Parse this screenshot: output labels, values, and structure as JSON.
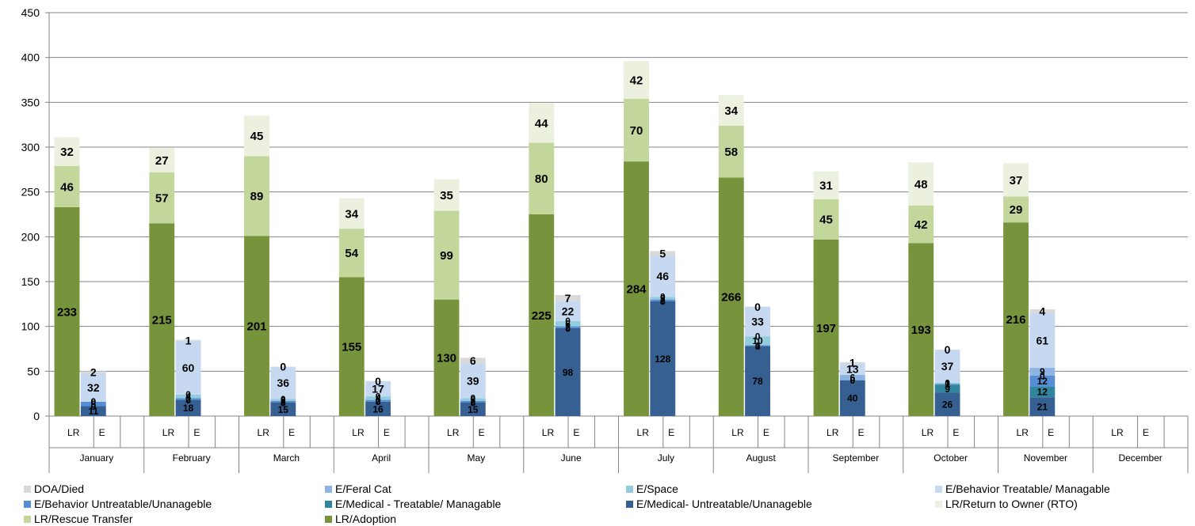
{
  "chart_data": {
    "type": "bar",
    "stacked": true,
    "ylim": [
      0,
      450
    ],
    "yticks": [
      0,
      50,
      100,
      150,
      200,
      250,
      300,
      350,
      400,
      450
    ],
    "grid": true,
    "legend_position": "bottom",
    "months": [
      "January",
      "February",
      "March",
      "April",
      "May",
      "June",
      "July",
      "August",
      "September",
      "October",
      "November",
      "December"
    ],
    "sub_categories": [
      "LR",
      "E"
    ],
    "series": [
      {
        "name": "LR/Adoption",
        "group": "LR",
        "color": "#77933c",
        "label_size": 15,
        "values": [
          233,
          215,
          201,
          155,
          130,
          225,
          284,
          266,
          197,
          193,
          216,
          null
        ]
      },
      {
        "name": "LR/Rescue Transfer",
        "group": "LR",
        "color": "#c3d69b",
        "label_size": 15,
        "values": [
          46,
          57,
          89,
          54,
          99,
          80,
          70,
          58,
          45,
          42,
          29,
          null
        ]
      },
      {
        "name": "LR/Return to Owner (RTO)",
        "group": "LR",
        "color": "#ebf1de",
        "label_size": 15,
        "values": [
          32,
          27,
          45,
          34,
          35,
          44,
          42,
          34,
          31,
          48,
          37,
          null
        ]
      },
      {
        "name": "E/Medical- Untreatable/Unanageble",
        "group": "E",
        "color": "#376092",
        "label_size": 12,
        "values": [
          11,
          18,
          15,
          16,
          15,
          98,
          128,
          78,
          40,
          26,
          21,
          null
        ]
      },
      {
        "name": "E/Medical - Treatable/ Managable",
        "group": "E",
        "color": "#31859c",
        "label_size": 12,
        "values": [
          0,
          0,
          0,
          0,
          0,
          0,
          0,
          0,
          0,
          9,
          12,
          null
        ]
      },
      {
        "name": "E/Behavior Untreatable/Unanageble",
        "group": "E",
        "color": "#558ed5",
        "label_size": 12,
        "values": [
          5,
          2,
          2,
          2,
          2,
          2,
          2,
          1,
          0,
          1,
          12,
          null
        ]
      },
      {
        "name": "E/Space",
        "group": "E",
        "color": "#93cddd",
        "label_size": 12,
        "values": [
          0,
          4,
          2,
          4,
          3,
          6,
          3,
          10,
          0,
          1,
          0,
          null
        ]
      },
      {
        "name": "E/Feral Cat",
        "group": "E",
        "color": "#8eb4e3",
        "label_size": 12,
        "values": [
          0,
          0,
          0,
          0,
          0,
          0,
          0,
          0,
          6,
          0,
          9,
          null
        ]
      },
      {
        "name": "E/Behavior Treatable/ Managable",
        "group": "E",
        "color": "#c6d9f1",
        "label_size": 14,
        "values": [
          32,
          60,
          36,
          17,
          39,
          22,
          46,
          33,
          13,
          37,
          61,
          null
        ]
      },
      {
        "name": "DOA/Died",
        "group": "E",
        "color": "#d9d9d9",
        "label_size": 14,
        "values": [
          2,
          1,
          0,
          0,
          6,
          7,
          5,
          0,
          1,
          0,
          4,
          null
        ]
      }
    ],
    "legend": [
      "DOA/Died",
      "E/Feral Cat",
      "E/Space",
      "E/Behavior Treatable/ Managable",
      "E/Behavior Untreatable/Unanageble",
      "E/Medical - Treatable/ Managable",
      "E/Medical- Untreatable/Unanageble",
      "LR/Return to Owner (RTO)",
      "LR/Rescue Transfer",
      "LR/Adoption"
    ]
  }
}
